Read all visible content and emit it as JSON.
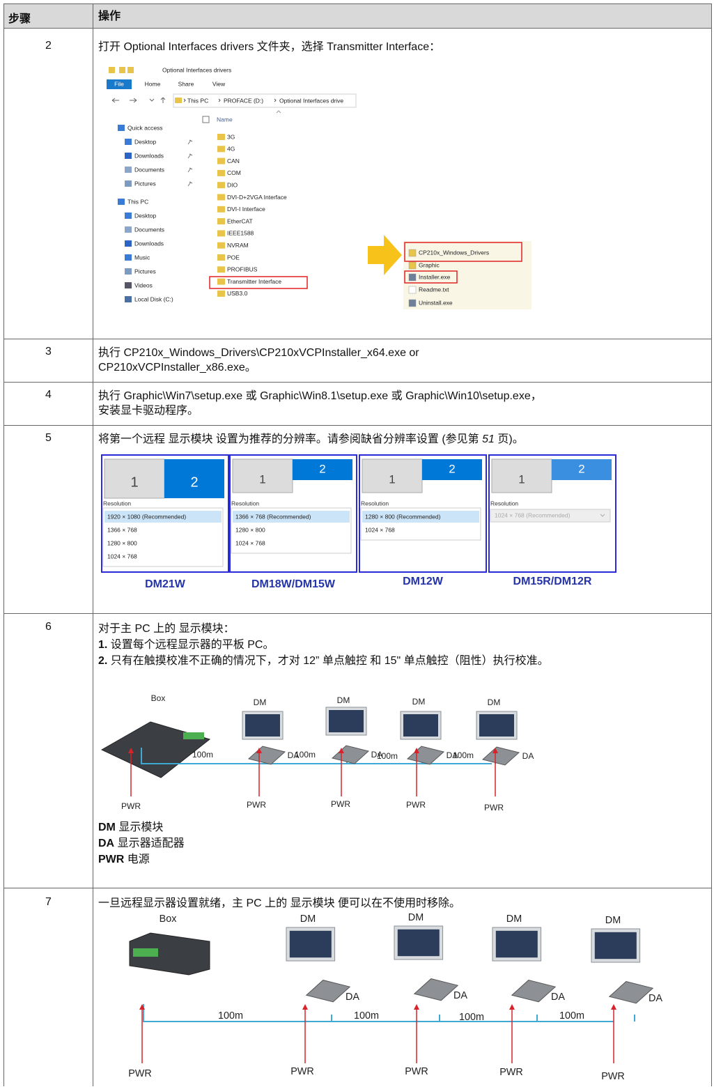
{
  "table": {
    "headers": [
      "步骤",
      "操作"
    ],
    "rows": [
      {
        "step": "2",
        "text": "打开 Optional Interfaces drivers 文件夹，选择 Transmitter Interface：",
        "explorer": {
          "title": "Optional Interfaces drivers",
          "tabs": [
            "File",
            "Home",
            "Share",
            "View"
          ],
          "path": [
            "This PC",
            "PROFACE (D:)",
            "Optional Interfaces drive"
          ],
          "column": "Name",
          "nav": [
            "Quick access",
            "Desktop",
            "Downloads",
            "Documents",
            "Pictures",
            "This PC",
            "Desktop",
            "Documents",
            "Downloads",
            "Music",
            "Pictures",
            "Videos",
            "Local Disk (C:)"
          ],
          "folders": [
            "3G",
            "4G",
            "CAN",
            "COM",
            "DIO",
            "DVI-D+2VGA Interface",
            "DVI-I Interface",
            "EtherCAT",
            "IEEE1588",
            "NVRAM",
            "POE",
            "PROFIBUS",
            "Transmitter Interface",
            "USB3.0"
          ],
          "files": [
            "CP210x_Windows_Drivers",
            "Graphic",
            "Installer.exe",
            "Readme.txt",
            "Uninstall.exe"
          ]
        }
      },
      {
        "step": "3",
        "lines": [
          "执行 CP210x_Windows_Drivers\\CP210xVCPInstaller_x64.exe or",
          "CP210xVCPInstaller_x86.exe。"
        ]
      },
      {
        "step": "4",
        "lines": [
          "执行 Graphic\\Win7\\setup.exe 或 Graphic\\Win8.1\\setup.exe 或 Graphic\\Win10\\setup.exe，",
          "安装显卡驱动程序。"
        ]
      },
      {
        "step": "5",
        "text": [
          "将第一个远程 显示模块 设置为推荐的分辨率。请参阅缺省分辨率设置 (参见第 ",
          "51",
          " 页)。"
        ],
        "panels": [
          {
            "monitors": [
              "1",
              "2"
            ],
            "heading": "Resolution",
            "options": [
              "1920 × 1080 (Recommended)",
              "1366 × 768",
              "1280 × 800",
              "1024 × 768"
            ],
            "model": "DM21W"
          },
          {
            "monitors": [
              "1",
              "2"
            ],
            "heading": "Resolution",
            "options": [
              "1366 × 768 (Recommended)",
              "1280 × 800",
              "1024 × 768"
            ],
            "model": "DM18W/DM15W"
          },
          {
            "monitors": [
              "1",
              "2"
            ],
            "heading": "Resolution",
            "options": [
              "1280 × 800 (Recommended)",
              "1024 × 768"
            ],
            "model": "DM12W"
          },
          {
            "monitors": [
              "1",
              "2"
            ],
            "heading": "Resolution",
            "options": [
              "1024 × 768 (Recommended)"
            ],
            "model": "DM15R/DM12R"
          }
        ]
      },
      {
        "step": "6",
        "intro": "对于主 PC 上的 显示模块：",
        "steps": [
          {
            "num": "1.",
            "text": "设置每个远程显示器的平板 PC。"
          },
          {
            "num": "2.",
            "text": "只有在触摸校准不正确的情况下，才对 12” 单点触控 和 15\" 单点触控（阻性）执行校准。"
          }
        ],
        "diagram": {
          "box": "Box",
          "monitors": [
            "DM",
            "DM",
            "DM",
            "DM"
          ],
          "adapters": [
            "DA",
            "DA",
            "DA",
            "DA"
          ],
          "cables": [
            "100m",
            "100m",
            "100m",
            "100m"
          ],
          "power": [
            "PWR",
            "PWR",
            "PWR",
            "PWR",
            "PWR"
          ]
        },
        "legend": [
          {
            "term": "DM",
            "desc": "显示模块"
          },
          {
            "term": "DA",
            "desc": "显示器适配器"
          },
          {
            "term": "PWR",
            "desc": "电源"
          }
        ]
      },
      {
        "step": "7",
        "text": "一旦远程显示器设置就绪，主 PC 上的 显示模块 便可以在不使用时移除。",
        "diagram": {
          "box": "Box",
          "monitors": [
            "DM",
            "DM",
            "DM",
            "DM"
          ],
          "adapters": [
            "DA",
            "DA",
            "DA",
            "DA"
          ],
          "cables": [
            "100m",
            "100m",
            "100m",
            "100m"
          ],
          "power": [
            "PWR",
            "PWR",
            "PWR",
            "PWR",
            "PWR"
          ]
        }
      }
    ]
  }
}
